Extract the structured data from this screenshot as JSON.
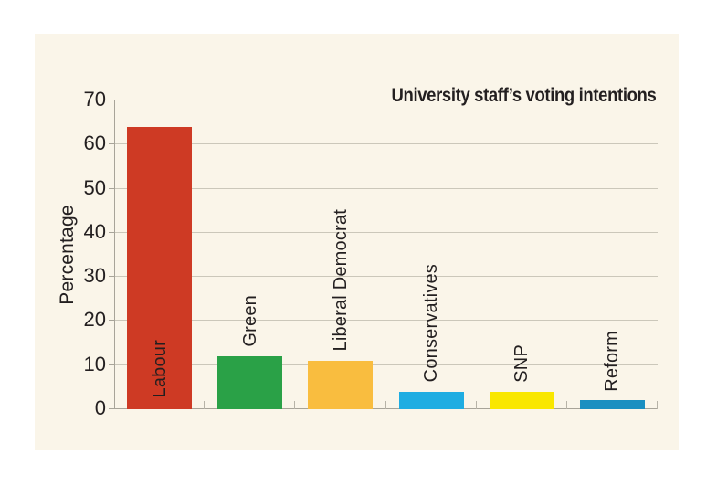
{
  "page": {
    "background": "#ffffff"
  },
  "panel": {
    "background": "#faf5e9"
  },
  "chart_data": {
    "type": "bar",
    "title": "University staff’s voting intentions",
    "xlabel": "",
    "ylabel": "Percentage",
    "categories": [
      "Labour",
      "Green",
      "Liberal Democrat",
      "Conservatives",
      "SNP",
      "Reform"
    ],
    "values": [
      64,
      12,
      11,
      4,
      4,
      2
    ],
    "bar_colors": [
      "#ce3a24",
      "#2aa147",
      "#f9bd3f",
      "#1fade2",
      "#f9e700",
      "#1a8fc1"
    ],
    "ylim": [
      0,
      70
    ],
    "yticks": [
      0,
      10,
      20,
      30,
      40,
      50,
      60,
      70
    ],
    "grid": true,
    "legend_position": "none",
    "category_label_rotation_deg": 90,
    "category_label_placement": [
      "inside-bar",
      "above-bar",
      "above-bar",
      "above-bar",
      "above-bar",
      "above-bar"
    ],
    "style_colors": {
      "gridline": "#cbc7ba",
      "axis": "#a8a499",
      "text": "#231f20"
    }
  }
}
